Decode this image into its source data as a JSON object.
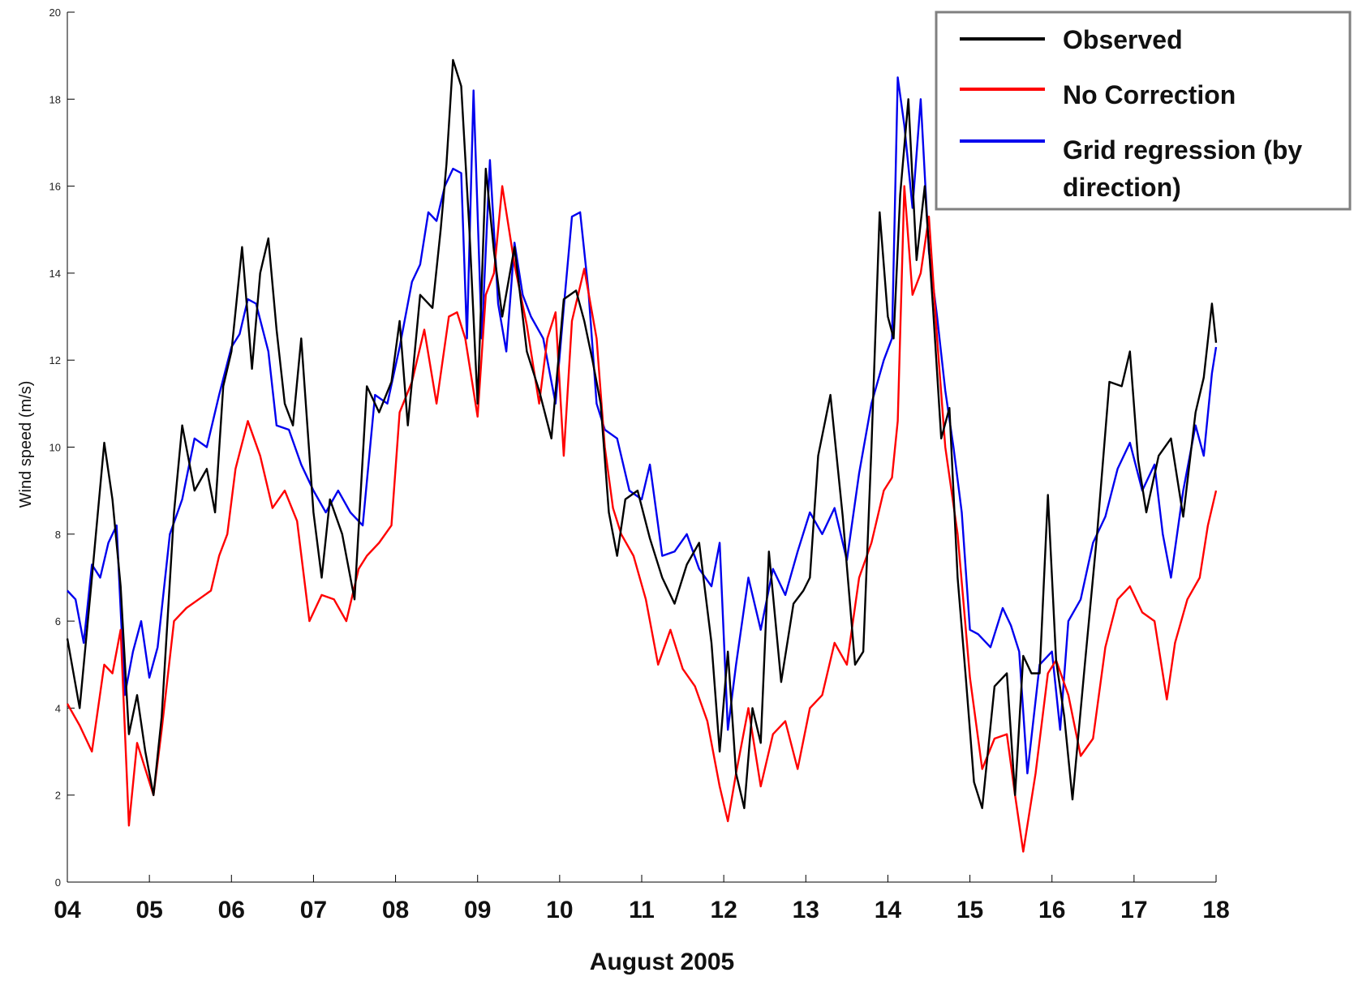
{
  "chart_data": {
    "type": "line",
    "title": "",
    "xlabel": "August 2005",
    "ylabel": "Wind speed (m/s)",
    "xlim": [
      4,
      18
    ],
    "ylim": [
      0,
      20
    ],
    "x_ticks": [
      "04",
      "05",
      "06",
      "07",
      "08",
      "09",
      "10",
      "11",
      "12",
      "13",
      "14",
      "15",
      "16",
      "17",
      "18"
    ],
    "y_ticks": [
      "0",
      "2",
      "4",
      "6",
      "8",
      "10",
      "12",
      "14",
      "16",
      "18",
      "20"
    ],
    "grid": false,
    "legend_position": "top-right",
    "legend": [
      "Observed",
      "No Correction",
      "Grid regression (by",
      "direction)"
    ],
    "series": [
      {
        "name": "Observed",
        "color": "#000000",
        "x": [
          4.0,
          4.15,
          4.3,
          4.45,
          4.55,
          4.65,
          4.75,
          4.85,
          4.95,
          5.05,
          5.15,
          5.3,
          5.4,
          5.55,
          5.7,
          5.8,
          5.9,
          6.0,
          6.13,
          6.25,
          6.35,
          6.45,
          6.55,
          6.65,
          6.75,
          6.85,
          7.0,
          7.1,
          7.2,
          7.35,
          7.5,
          7.65,
          7.8,
          7.95,
          8.05,
          8.15,
          8.3,
          8.45,
          8.55,
          8.62,
          8.7,
          8.8,
          8.9,
          9.0,
          9.1,
          9.2,
          9.3,
          9.45,
          9.6,
          9.75,
          9.9,
          10.05,
          10.2,
          10.3,
          10.4,
          10.5,
          10.6,
          10.7,
          10.8,
          10.95,
          11.1,
          11.25,
          11.4,
          11.55,
          11.7,
          11.85,
          11.95,
          12.05,
          12.15,
          12.25,
          12.35,
          12.45,
          12.55,
          12.7,
          12.85,
          12.97,
          13.05,
          13.15,
          13.3,
          13.45,
          13.6,
          13.7,
          13.8,
          13.9,
          14.0,
          14.07,
          14.15,
          14.25,
          14.35,
          14.45,
          14.55,
          14.65,
          14.75,
          14.85,
          14.95,
          15.05,
          15.15,
          15.3,
          15.45,
          15.55,
          15.65,
          15.75,
          15.85,
          15.95,
          16.05,
          16.15,
          16.25,
          16.4,
          16.55,
          16.7,
          16.85,
          16.95,
          17.05,
          17.15,
          17.3,
          17.45,
          17.6,
          17.75,
          17.85,
          17.95,
          18.0
        ],
        "y": [
          5.6,
          4.0,
          7.0,
          10.1,
          8.8,
          6.8,
          3.4,
          4.3,
          3.0,
          2.0,
          3.8,
          8.5,
          10.5,
          9.0,
          9.5,
          8.5,
          11.4,
          12.2,
          14.6,
          11.8,
          14.0,
          14.8,
          12.7,
          11.0,
          10.5,
          12.5,
          8.5,
          7.0,
          8.8,
          8.0,
          6.5,
          11.4,
          10.8,
          11.5,
          12.9,
          10.5,
          13.5,
          13.2,
          15.0,
          16.5,
          18.9,
          18.3,
          15.0,
          11.0,
          16.4,
          14.5,
          13.0,
          14.6,
          12.2,
          11.3,
          10.2,
          13.4,
          13.6,
          12.9,
          12.0,
          11.0,
          8.5,
          7.5,
          8.8,
          9.0,
          7.9,
          7.0,
          6.4,
          7.3,
          7.8,
          5.5,
          3.0,
          5.3,
          2.5,
          1.7,
          4.0,
          3.2,
          7.6,
          4.6,
          6.4,
          6.7,
          7.0,
          9.8,
          11.2,
          8.4,
          5.0,
          5.3,
          10.0,
          15.4,
          13.0,
          12.5,
          15.8,
          18.0,
          14.3,
          16.0,
          13.2,
          10.2,
          10.9,
          7.0,
          4.7,
          2.3,
          1.7,
          4.5,
          4.8,
          2.0,
          5.2,
          4.8,
          4.8,
          8.9,
          5.1,
          3.8,
          1.9,
          5.0,
          8.0,
          11.5,
          11.4,
          12.2,
          9.7,
          8.5,
          9.8,
          10.2,
          8.4,
          10.8,
          11.6,
          13.3,
          12.4
        ]
      },
      {
        "name": "No Correction",
        "color": "#ff0000",
        "x": [
          4.0,
          4.15,
          4.3,
          4.45,
          4.55,
          4.65,
          4.75,
          4.85,
          4.95,
          5.05,
          5.15,
          5.3,
          5.45,
          5.6,
          5.75,
          5.85,
          5.95,
          6.05,
          6.2,
          6.35,
          6.5,
          6.65,
          6.8,
          6.95,
          7.1,
          7.25,
          7.4,
          7.55,
          7.65,
          7.8,
          7.95,
          8.05,
          8.2,
          8.35,
          8.5,
          8.65,
          8.75,
          8.85,
          9.0,
          9.1,
          9.2,
          9.3,
          9.45,
          9.6,
          9.75,
          9.85,
          9.95,
          10.05,
          10.15,
          10.3,
          10.45,
          10.55,
          10.65,
          10.75,
          10.9,
          11.05,
          11.2,
          11.35,
          11.5,
          11.65,
          11.8,
          11.95,
          12.05,
          12.15,
          12.3,
          12.45,
          12.6,
          12.75,
          12.9,
          13.05,
          13.2,
          13.35,
          13.5,
          13.65,
          13.8,
          13.95,
          14.05,
          14.12,
          14.2,
          14.3,
          14.4,
          14.5,
          14.6,
          14.7,
          14.85,
          15.0,
          15.15,
          15.3,
          15.45,
          15.55,
          15.65,
          15.8,
          15.95,
          16.05,
          16.2,
          16.35,
          16.5,
          16.65,
          16.8,
          16.95,
          17.1,
          17.25,
          17.4,
          17.5,
          17.65,
          17.8,
          17.9,
          18.0
        ],
        "y": [
          4.1,
          3.6,
          3.0,
          5.0,
          4.8,
          5.8,
          1.3,
          3.2,
          2.6,
          2.0,
          3.5,
          6.0,
          6.3,
          6.5,
          6.7,
          7.5,
          8.0,
          9.5,
          10.6,
          9.8,
          8.6,
          9.0,
          8.3,
          6.0,
          6.6,
          6.5,
          6.0,
          7.2,
          7.5,
          7.8,
          8.2,
          10.8,
          11.5,
          12.7,
          11.0,
          13.0,
          13.1,
          12.5,
          10.7,
          13.5,
          14.0,
          16.0,
          14.2,
          12.8,
          11.0,
          12.5,
          13.1,
          9.8,
          12.9,
          14.1,
          12.5,
          10.0,
          8.6,
          8.0,
          7.5,
          6.5,
          5.0,
          5.8,
          4.9,
          4.5,
          3.7,
          2.2,
          1.4,
          2.5,
          4.0,
          2.2,
          3.4,
          3.7,
          2.6,
          4.0,
          4.3,
          5.5,
          5.0,
          7.0,
          7.8,
          9.0,
          9.3,
          10.6,
          16.0,
          13.5,
          14.0,
          15.3,
          12.5,
          10.0,
          8.0,
          4.7,
          2.6,
          3.3,
          3.4,
          2.0,
          0.7,
          2.5,
          4.8,
          5.1,
          4.3,
          2.9,
          3.3,
          5.4,
          6.5,
          6.8,
          6.2,
          6.0,
          4.2,
          5.5,
          6.5,
          7.0,
          8.2,
          9.0
        ]
      },
      {
        "name": "Grid regression (by direction)",
        "color": "#0000ee",
        "x": [
          4.0,
          4.1,
          4.2,
          4.3,
          4.4,
          4.5,
          4.6,
          4.7,
          4.8,
          4.9,
          5.0,
          5.1,
          5.25,
          5.4,
          5.55,
          5.7,
          5.85,
          6.0,
          6.1,
          6.2,
          6.3,
          6.45,
          6.55,
          6.7,
          6.85,
          7.0,
          7.15,
          7.3,
          7.45,
          7.6,
          7.75,
          7.9,
          8.05,
          8.2,
          8.3,
          8.4,
          8.5,
          8.6,
          8.7,
          8.8,
          8.87,
          8.95,
          9.05,
          9.15,
          9.25,
          9.35,
          9.45,
          9.55,
          9.65,
          9.8,
          9.95,
          10.05,
          10.15,
          10.25,
          10.35,
          10.45,
          10.55,
          10.7,
          10.85,
          11.0,
          11.1,
          11.25,
          11.4,
          11.55,
          11.7,
          11.85,
          11.95,
          12.05,
          12.15,
          12.3,
          12.45,
          12.6,
          12.75,
          12.9,
          13.05,
          13.2,
          13.35,
          13.5,
          13.65,
          13.8,
          13.95,
          14.05,
          14.12,
          14.2,
          14.3,
          14.4,
          14.5,
          14.6,
          14.7,
          14.8,
          14.9,
          15.0,
          15.1,
          15.25,
          15.4,
          15.5,
          15.6,
          15.7,
          15.85,
          16.0,
          16.1,
          16.2,
          16.35,
          16.5,
          16.65,
          16.8,
          16.95,
          17.1,
          17.25,
          17.35,
          17.45,
          17.6,
          17.75,
          17.85,
          17.95,
          18.0
        ],
        "y": [
          6.7,
          6.5,
          5.5,
          7.3,
          7.0,
          7.8,
          8.2,
          4.3,
          5.3,
          6.0,
          4.7,
          5.4,
          8.0,
          8.8,
          10.2,
          10.0,
          11.2,
          12.3,
          12.6,
          13.4,
          13.3,
          12.2,
          10.5,
          10.4,
          9.6,
          9.0,
          8.5,
          9.0,
          8.5,
          8.2,
          11.2,
          11.0,
          12.3,
          13.8,
          14.2,
          15.4,
          15.2,
          16.0,
          16.4,
          16.3,
          12.5,
          18.2,
          12.5,
          16.6,
          13.3,
          12.2,
          14.7,
          13.5,
          13.0,
          12.5,
          11.0,
          13.2,
          15.3,
          15.4,
          13.6,
          11.0,
          10.4,
          10.2,
          9.0,
          8.8,
          9.6,
          7.5,
          7.6,
          8.0,
          7.2,
          6.8,
          7.8,
          3.5,
          5.0,
          7.0,
          5.8,
          7.2,
          6.6,
          7.6,
          8.5,
          8.0,
          8.6,
          7.4,
          9.4,
          11.0,
          12.0,
          12.5,
          18.5,
          17.4,
          15.5,
          18.0,
          14.5,
          13.0,
          11.3,
          10.0,
          8.5,
          5.8,
          5.7,
          5.4,
          6.3,
          5.9,
          5.3,
          2.5,
          5.0,
          5.3,
          3.5,
          6.0,
          6.5,
          7.8,
          8.4,
          9.5,
          10.1,
          9.0,
          9.6,
          8.0,
          7.0,
          9.0,
          10.5,
          9.8,
          11.7,
          12.3
        ]
      }
    ]
  }
}
